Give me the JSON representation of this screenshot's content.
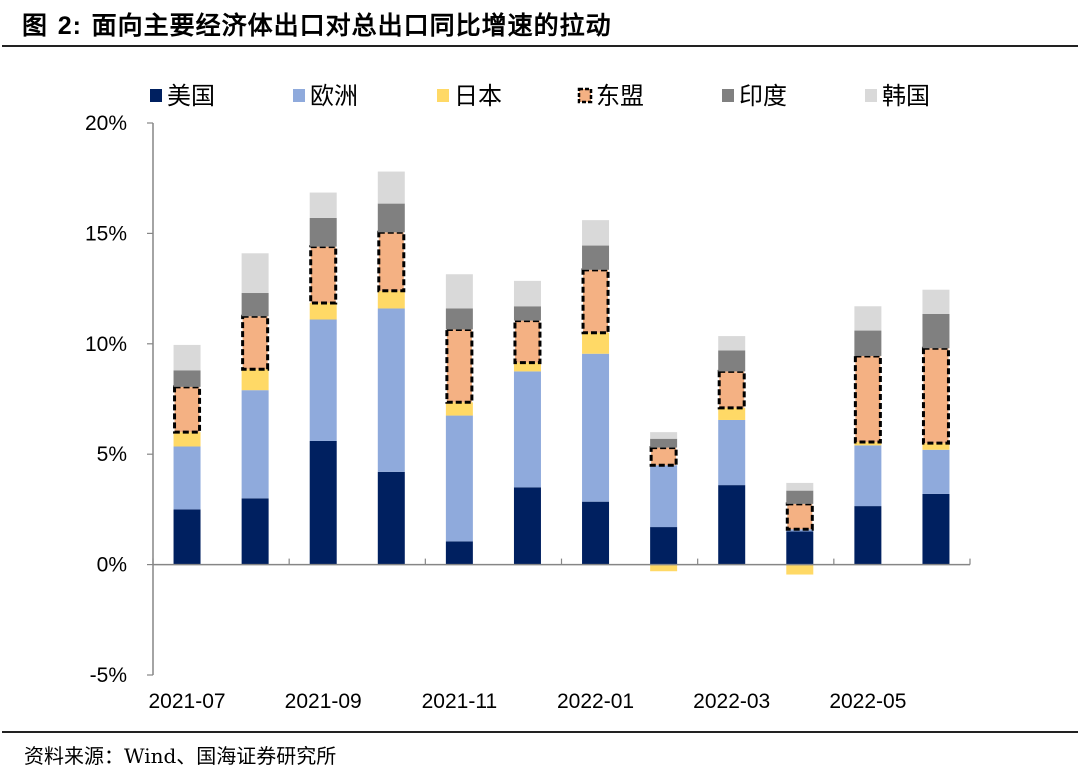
{
  "header": {
    "title_prefix": "图 ",
    "title_number": "2:",
    "title_text": " 面向主要经济体出口对总出口同比增速的拉动"
  },
  "footer": {
    "source": "资料来源：Wind、国海证券研究所"
  },
  "chart_data": {
    "type": "bar",
    "stacked": true,
    "title": "面向主要经济体出口对总出口同比增速的拉动",
    "xlabel": "",
    "ylabel": "",
    "ylim": [
      -5,
      20
    ],
    "yticks": [
      -5,
      0,
      5,
      10,
      15,
      20
    ],
    "ytick_labels": [
      "-5%",
      "0%",
      "5%",
      "10%",
      "15%",
      "20%"
    ],
    "unit": "%",
    "grid": false,
    "legend_position": "top",
    "categories": [
      "2021-07",
      "2021-08",
      "2021-09",
      "2021-10",
      "2021-11",
      "2021-12",
      "2022-01",
      "2022-02",
      "2022-03",
      "2022-04",
      "2022-05",
      "2022-06"
    ],
    "xtick_labels": [
      "2021-07",
      "",
      "2021-09",
      "",
      "2021-11",
      "",
      "2022-01",
      "",
      "2022-03",
      "",
      "2022-05",
      ""
    ],
    "series": [
      {
        "name": "美国",
        "color": "#002060",
        "dashed_border": false,
        "values": [
          2.5,
          3.0,
          5.6,
          4.2,
          1.05,
          3.5,
          2.85,
          1.7,
          3.6,
          1.5,
          2.65,
          3.2
        ]
      },
      {
        "name": "欧洲",
        "color": "#8FAADC",
        "dashed_border": false,
        "values": [
          2.85,
          4.9,
          5.5,
          7.4,
          5.7,
          5.25,
          6.7,
          2.8,
          2.95,
          0.1,
          2.75,
          2.0
        ]
      },
      {
        "name": "日本",
        "color": "#FFD966",
        "dashed_border": false,
        "values": [
          0.65,
          0.95,
          0.75,
          0.8,
          0.6,
          0.4,
          0.95,
          -0.3,
          0.55,
          -0.45,
          0.15,
          0.3
        ]
      },
      {
        "name": "东盟",
        "color": "#F4B183",
        "dashed_border": true,
        "values": [
          2.05,
          2.4,
          2.55,
          2.65,
          3.3,
          1.9,
          2.85,
          0.8,
          1.65,
          1.15,
          3.9,
          4.3
        ]
      },
      {
        "name": "印度",
        "color": "#808080",
        "dashed_border": false,
        "values": [
          0.75,
          1.05,
          1.3,
          1.3,
          0.95,
          0.65,
          1.1,
          0.4,
          0.95,
          0.6,
          1.15,
          1.55
        ]
      },
      {
        "name": "韩国",
        "color": "#D9D9D9",
        "dashed_border": false,
        "values": [
          1.15,
          1.8,
          1.15,
          1.45,
          1.55,
          1.15,
          1.15,
          0.3,
          0.65,
          0.35,
          1.1,
          1.1
        ]
      }
    ]
  }
}
